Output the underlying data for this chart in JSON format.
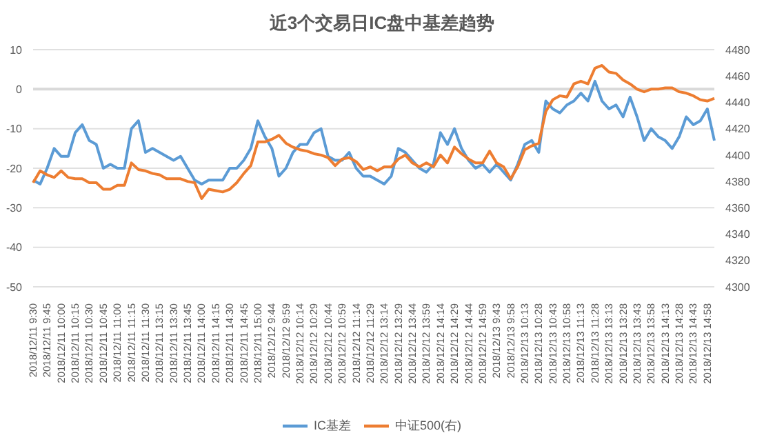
{
  "chart_data": {
    "type": "line",
    "title": "近3个交易日IC盘中基差趋势",
    "categories": [
      "2018/12/11 9:30",
      null,
      "2018/12/11 9:45",
      null,
      "2018/12/11 10:00",
      null,
      "2018/12/11 10:15",
      null,
      "2018/12/11 10:30",
      null,
      "2018/12/11 10:45",
      null,
      "2018/12/11 11:00",
      null,
      "2018/12/11 11:15",
      null,
      "2018/12/11 11:30",
      null,
      "2018/12/11 13:15",
      null,
      "2018/12/11 13:30",
      null,
      "2018/12/11 13:45",
      null,
      "2018/12/11 14:00",
      null,
      "2018/12/11 14:15",
      null,
      "2018/12/11 14:30",
      null,
      "2018/12/11 14:45",
      null,
      "2018/12/11 15:00",
      null,
      "2018/12/12 9:44",
      null,
      "2018/12/12 9:59",
      null,
      "2018/12/12 10:14",
      null,
      "2018/12/12 10:29",
      null,
      "2018/12/12 10:44",
      null,
      "2018/12/12 10:59",
      null,
      "2018/12/12 11:14",
      null,
      "2018/12/12 11:29",
      null,
      "2018/12/12 13:14",
      null,
      "2018/12/12 13:29",
      null,
      "2018/12/12 13:44",
      null,
      "2018/12/12 13:59",
      null,
      "2018/12/12 14:14",
      null,
      "2018/12/12 14:29",
      null,
      "2018/12/12 14:44",
      null,
      "2018/12/12 14:59",
      null,
      "2018/12/13 9:43",
      null,
      "2018/12/13 9:58",
      null,
      "2018/12/13 10:13",
      null,
      "2018/12/13 10:28",
      null,
      "2018/12/13 10:43",
      null,
      "2018/12/13 10:58",
      null,
      "2018/12/13 11:13",
      null,
      "2018/12/13 11:28",
      null,
      "2018/12/13 13:13",
      null,
      "2018/12/13 13:28",
      null,
      "2018/12/13 13:43",
      null,
      "2018/12/13 13:58",
      null,
      "2018/12/13 14:13",
      null,
      "2018/12/13 14:28",
      null,
      "2018/12/13 14:43",
      null,
      "2018/12/13 14:58",
      null
    ],
    "series": [
      {
        "name": "IC基差",
        "color": "#5b9bd5",
        "values": [
          -23,
          -24,
          -20,
          -15,
          -17,
          -17,
          -11,
          -9,
          -13,
          -14,
          -20,
          -19,
          -20,
          -20,
          -10,
          -8,
          -16,
          -15,
          -16,
          -17,
          -18,
          -17,
          -20,
          -23,
          -24,
          -23,
          -23,
          -23,
          -20,
          -20,
          -18,
          -15,
          -8,
          -12,
          -15,
          -22,
          -20,
          -16,
          -14,
          -14,
          -11,
          -10,
          -17,
          -18,
          -18,
          -16,
          -20,
          -22,
          -22,
          -23,
          -24,
          -22,
          -15,
          -16,
          -18,
          -20,
          -21,
          -19,
          -11,
          -14,
          -10,
          -15,
          -18,
          -20,
          -19,
          -21,
          -19,
          -21,
          -23,
          -19,
          -14,
          -13,
          -16,
          -3,
          -5,
          -6,
          -4,
          -3,
          -1,
          -3,
          2,
          -3,
          -5,
          -4,
          -7,
          -2,
          -7,
          -13,
          -10,
          -12,
          -13,
          -15,
          -12,
          -7,
          -9,
          -8,
          -5,
          -13
        ]
      },
      {
        "name": "中证500(右)",
        "color": "#ed7d31",
        "axis": "y2",
        "values": [
          4379,
          4388,
          4385,
          4383,
          4388,
          4383,
          4382,
          4382,
          4379,
          4379,
          4374,
          4374,
          4377,
          4377,
          4394,
          4389,
          4388,
          4386,
          4385,
          4382,
          4382,
          4382,
          4380,
          4379,
          4367,
          4374,
          4373,
          4372,
          4374,
          4379,
          4386,
          4392,
          4410,
          4410,
          4412,
          4415,
          4409,
          4406,
          4404,
          4403,
          4401,
          4400,
          4398,
          4392,
          4397,
          4398,
          4395,
          4389,
          4391,
          4388,
          4391,
          4391,
          4397,
          4400,
          4394,
          4391,
          4394,
          4391,
          4400,
          4394,
          4406,
          4401,
          4397,
          4394,
          4394,
          4403,
          4394,
          4391,
          4382,
          4391,
          4404,
          4407,
          4409,
          4433,
          4442,
          4445,
          4444,
          4454,
          4456,
          4454,
          4466,
          4468,
          4463,
          4462,
          4457,
          4454,
          4450,
          4448,
          4450,
          4450,
          4451,
          4451,
          4448,
          4447,
          4445,
          4442,
          4441,
          4443
        ]
      }
    ],
    "ylim": [
      -50,
      10
    ],
    "yticks": [
      -50,
      -40,
      -30,
      -20,
      -10,
      0,
      10
    ],
    "y2lim": [
      4300,
      4480
    ],
    "y2ticks": [
      4300,
      4320,
      4340,
      4360,
      4380,
      4400,
      4420,
      4440,
      4460,
      4480
    ],
    "ref_lines": [
      {
        "axis": "y",
        "value": 0,
        "color": "#d9d9d9"
      }
    ],
    "grid": "y",
    "legend": "bottom",
    "marker": "none",
    "line_style": "solid"
  }
}
